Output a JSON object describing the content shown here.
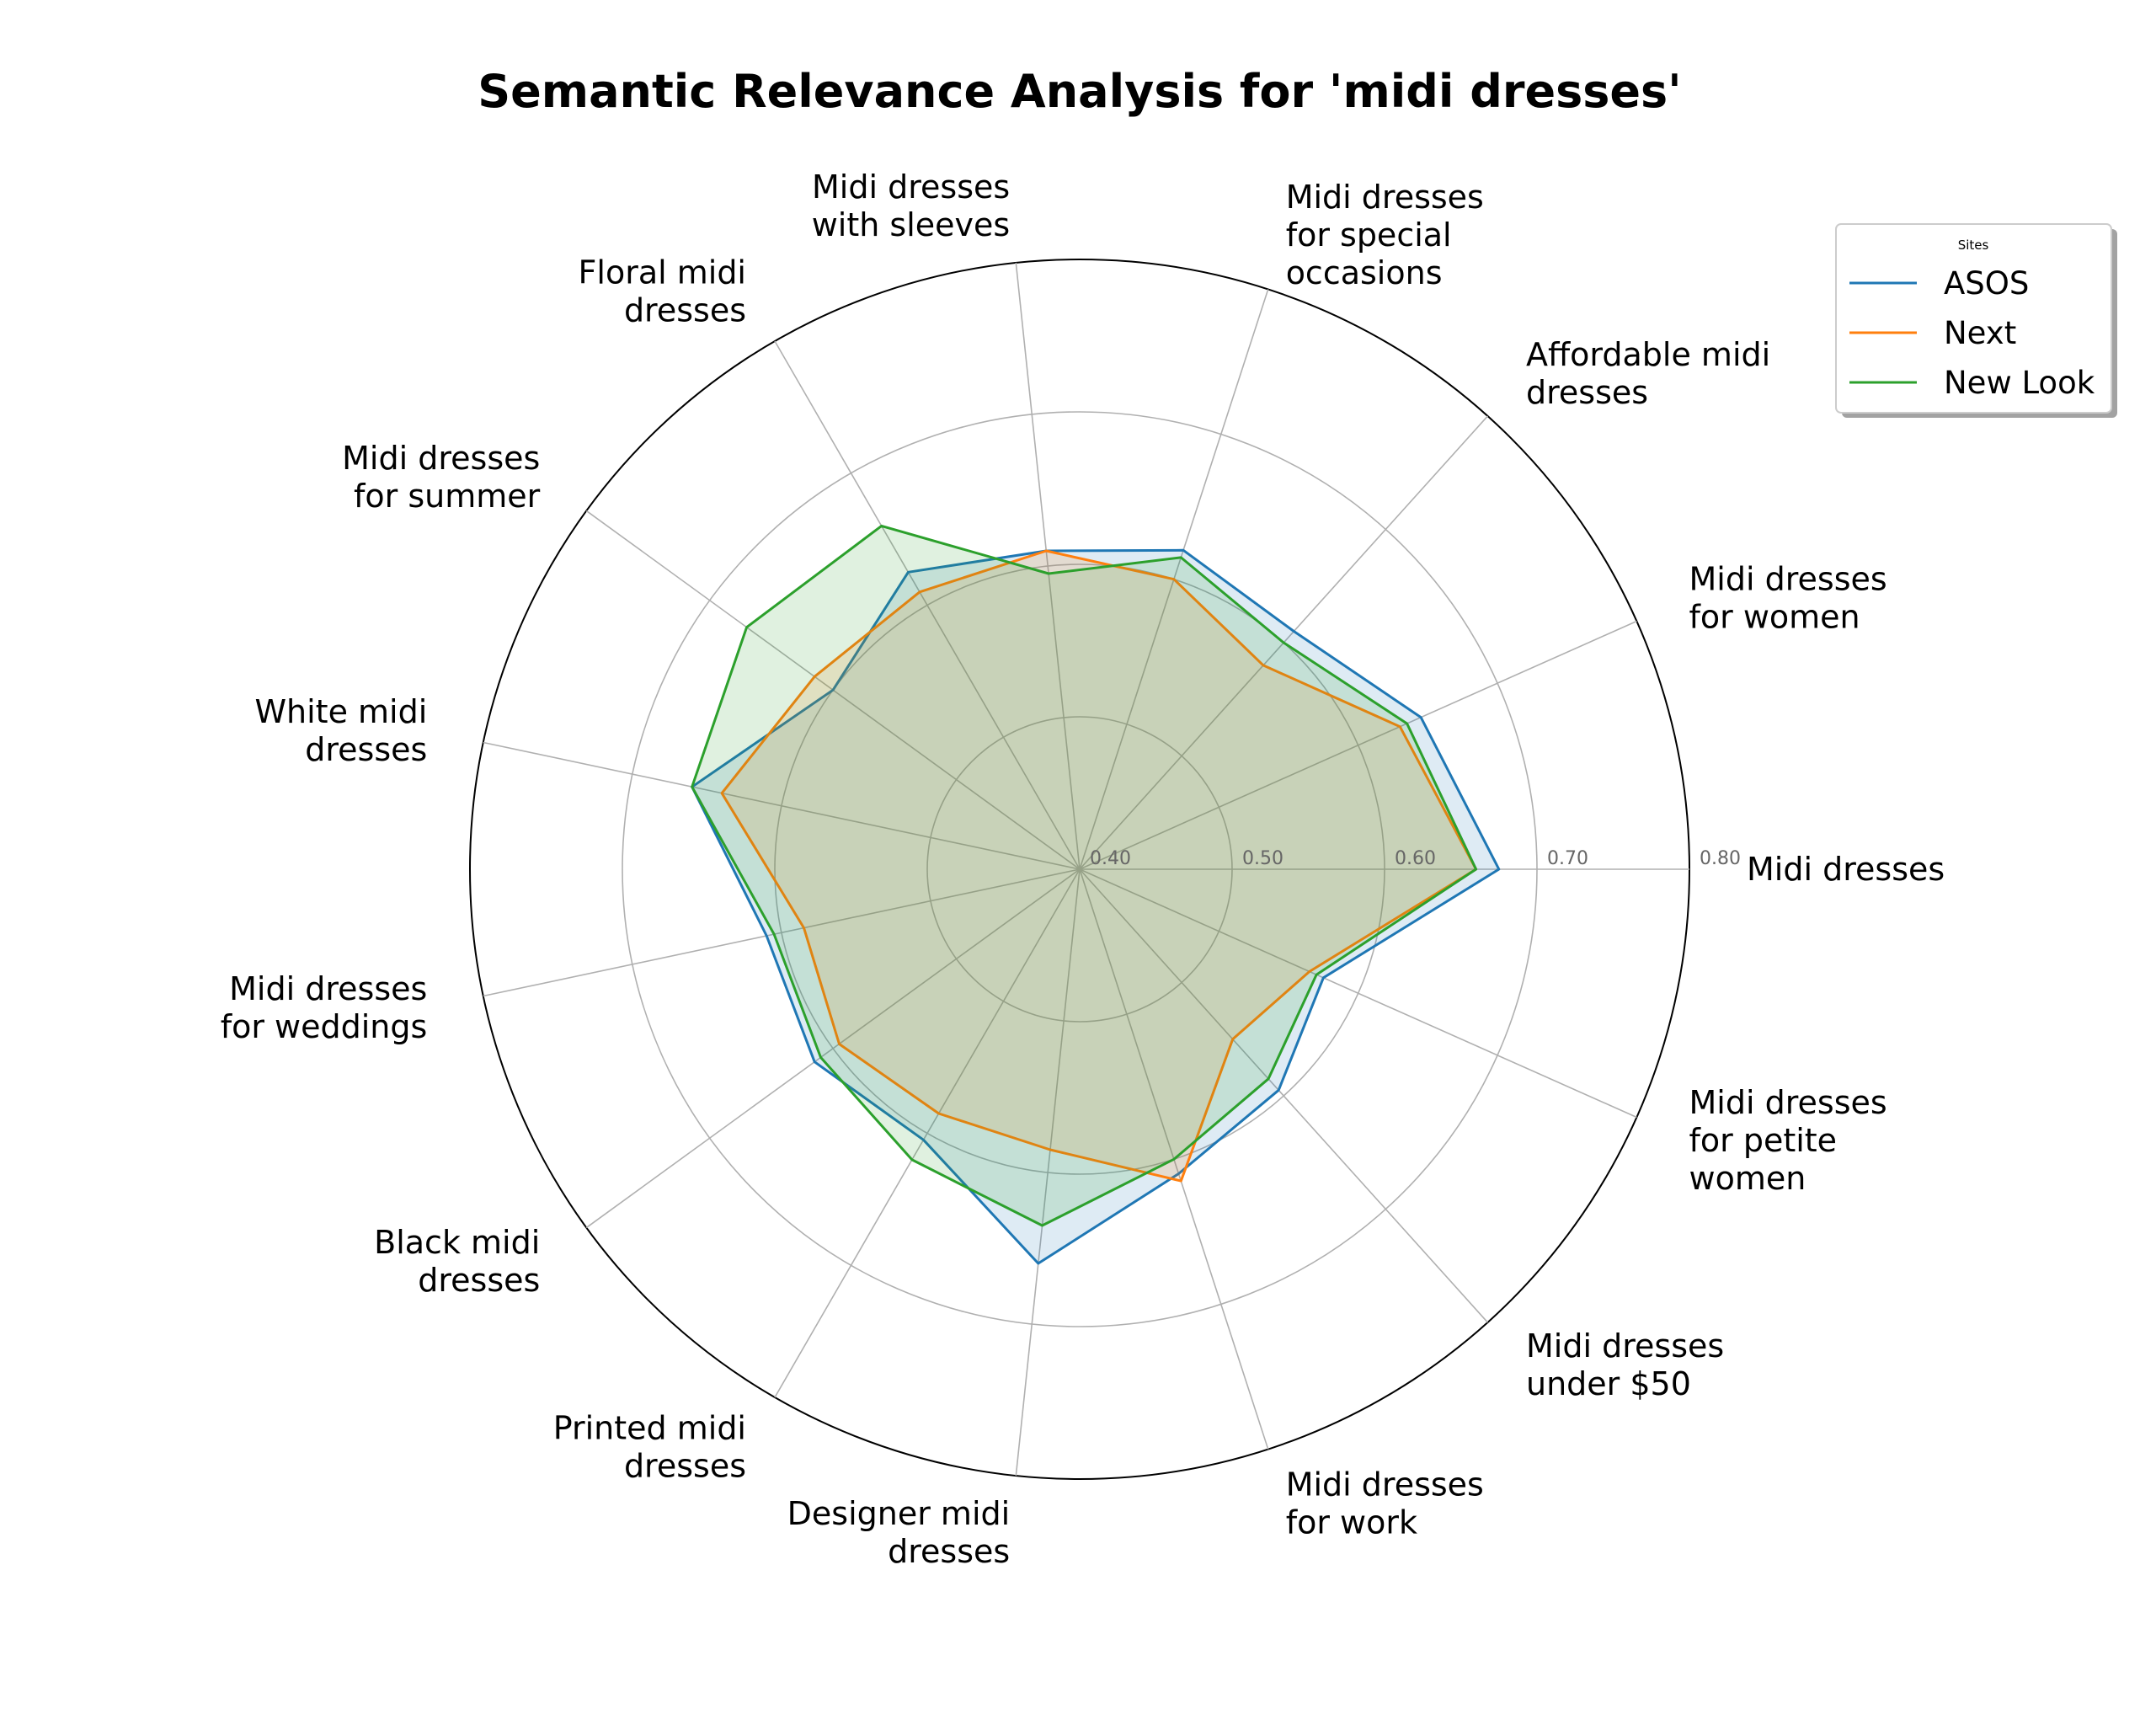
{
  "chart_data": {
    "type": "radar",
    "title": "Semantic Relevance Analysis for 'midi dresses'",
    "categories": [
      "Midi dresses",
      "Midi dresses for women",
      "Affordable midi dresses",
      "Midi dresses for special occasions",
      "Midi dresses with sleeves",
      "Floral midi dresses",
      "Midi dresses for summer",
      "White midi dresses",
      "Midi dresses for weddings",
      "Black midi dresses",
      "Printed midi dresses",
      "Designer midi dresses",
      "Midi dresses for work",
      "Midi dresses under $50",
      "Midi dresses for petite women"
    ],
    "category_label_lines": [
      [
        "Midi dresses"
      ],
      [
        "Midi dresses",
        "for women"
      ],
      [
        "Affordable midi",
        "dresses"
      ],
      [
        "Midi dresses",
        "for special",
        "occasions"
      ],
      [
        "Midi dresses",
        "with sleeves"
      ],
      [
        "Floral midi",
        "dresses"
      ],
      [
        "Midi dresses",
        "for summer"
      ],
      [
        "White midi",
        "dresses"
      ],
      [
        "Midi dresses",
        "for weddings"
      ],
      [
        "Black midi",
        "dresses"
      ],
      [
        "Printed midi",
        "dresses"
      ],
      [
        "Designer midi",
        "dresses"
      ],
      [
        "Midi dresses",
        "for work"
      ],
      [
        "Midi dresses",
        "under $50"
      ],
      [
        "Midi dresses",
        "for petite",
        "women"
      ]
    ],
    "rlim": [
      0.4,
      0.8
    ],
    "rticks": [
      0.4,
      0.5,
      0.6,
      0.7,
      0.8
    ],
    "rtick_labels": [
      "0.40",
      "0.50",
      "0.60",
      "0.70",
      "0.80"
    ],
    "grid": true,
    "series": [
      {
        "name": "ASOS",
        "color": "#1f77b4",
        "values": [
          0.675,
          0.645,
          0.61,
          0.62,
          0.61,
          0.625,
          0.6,
          0.66,
          0.61,
          0.615,
          0.605,
          0.66,
          0.61,
          0.595,
          0.575
        ]
      },
      {
        "name": "Next",
        "color": "#ff7f0e",
        "values": [
          0.66,
          0.63,
          0.58,
          0.6,
          0.61,
          0.61,
          0.615,
          0.64,
          0.585,
          0.595,
          0.585,
          0.585,
          0.615,
          0.55,
          0.565
        ]
      },
      {
        "name": "New Look",
        "color": "#2ca02c",
        "values": [
          0.66,
          0.635,
          0.6,
          0.615,
          0.595,
          0.66,
          0.67,
          0.66,
          0.605,
          0.61,
          0.62,
          0.635,
          0.6,
          0.585,
          0.57
        ]
      }
    ],
    "legend": {
      "title": "Sites",
      "placement": "top-right"
    }
  }
}
